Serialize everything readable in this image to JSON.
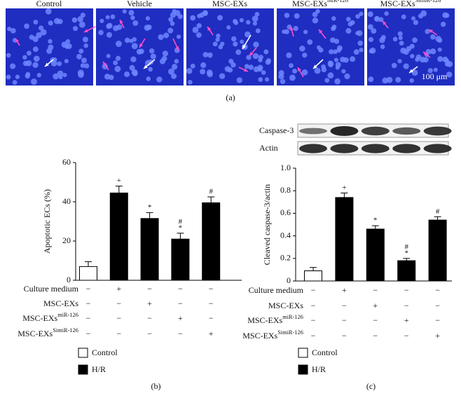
{
  "figure_a": {
    "titles": [
      {
        "base": "Control"
      },
      {
        "base": "Vehicle"
      },
      {
        "base": "MSC-EXs"
      },
      {
        "base": "MSC-EXs",
        "sup": "miR-126"
      },
      {
        "base": "MSC-EXs",
        "sup": "SimiR-126"
      }
    ],
    "scale_bar": "100 μm",
    "panel_label": "(a)"
  },
  "chart_data": [
    {
      "type": "bar",
      "ylabel": "Apoptotic ECs (%)",
      "values": [
        7,
        44.5,
        31.5,
        21,
        39.5
      ],
      "errors": [
        2.5,
        3.5,
        3,
        3,
        3
      ],
      "colors": [
        "#ffffff",
        "#000000",
        "#000000",
        "#000000",
        "#000000"
      ],
      "annotations": [
        null,
        [
          "+"
        ],
        [
          "*"
        ],
        [
          "#",
          "*"
        ],
        [
          "#"
        ]
      ],
      "ylim": [
        0,
        60
      ],
      "yticks": [
        0,
        20,
        40,
        60
      ],
      "table": [
        {
          "label": {
            "base": "Culture medium"
          },
          "marks": [
            "−",
            "+",
            "−",
            "−",
            "−"
          ]
        },
        {
          "label": {
            "base": "MSC-EXs"
          },
          "marks": [
            "−",
            "−",
            "+",
            "−",
            "−"
          ]
        },
        {
          "label": {
            "base": "MSC-EXs",
            "sup": "miR-126"
          },
          "marks": [
            "−",
            "−",
            "−",
            "+",
            "−"
          ]
        },
        {
          "label": {
            "base": "MSC-EXs",
            "sup": "SimiR-126"
          },
          "marks": [
            "−",
            "−",
            "−",
            "−",
            "+"
          ]
        }
      ],
      "legend": [
        {
          "name": "Control",
          "color": "#ffffff"
        },
        {
          "name": "H/R",
          "color": "#000000"
        }
      ],
      "panel_label": "(b)"
    },
    {
      "type": "bar",
      "ylabel": "Cleaved caspase-3/actin",
      "values": [
        0.09,
        0.74,
        0.46,
        0.18,
        0.54
      ],
      "errors": [
        0.03,
        0.04,
        0.03,
        0.02,
        0.03
      ],
      "colors": [
        "#ffffff",
        "#000000",
        "#000000",
        "#000000",
        "#000000"
      ],
      "annotations": [
        null,
        [
          "+"
        ],
        [
          "*"
        ],
        [
          "#",
          "*"
        ],
        [
          "#"
        ]
      ],
      "ylim": [
        0,
        1
      ],
      "yticks": [
        0,
        0.2,
        0.4,
        0.6,
        0.8,
        {
          "value": 1,
          "label": "1.0"
        }
      ],
      "blot_labels": [
        "Caspase-3",
        "Actin"
      ],
      "table": [
        {
          "label": {
            "base": "Culture medium"
          },
          "marks": [
            "−",
            "+",
            "−",
            "−",
            "−"
          ]
        },
        {
          "label": {
            "base": "MSC-EXs"
          },
          "marks": [
            "−",
            "−",
            "+",
            "−",
            "−"
          ]
        },
        {
          "label": {
            "base": "MSC-EXs",
            "sup": "miR-126"
          },
          "marks": [
            "−",
            "−",
            "−",
            "+",
            "−"
          ]
        },
        {
          "label": {
            "base": "MSC-EXs",
            "sup": "SimiR-126"
          },
          "marks": [
            "−",
            "−",
            "−",
            "−",
            "+"
          ]
        }
      ],
      "legend": [
        {
          "name": "Control",
          "color": "#ffffff"
        },
        {
          "name": "H/R",
          "color": "#000000"
        }
      ],
      "panel_label": "(c)"
    }
  ]
}
